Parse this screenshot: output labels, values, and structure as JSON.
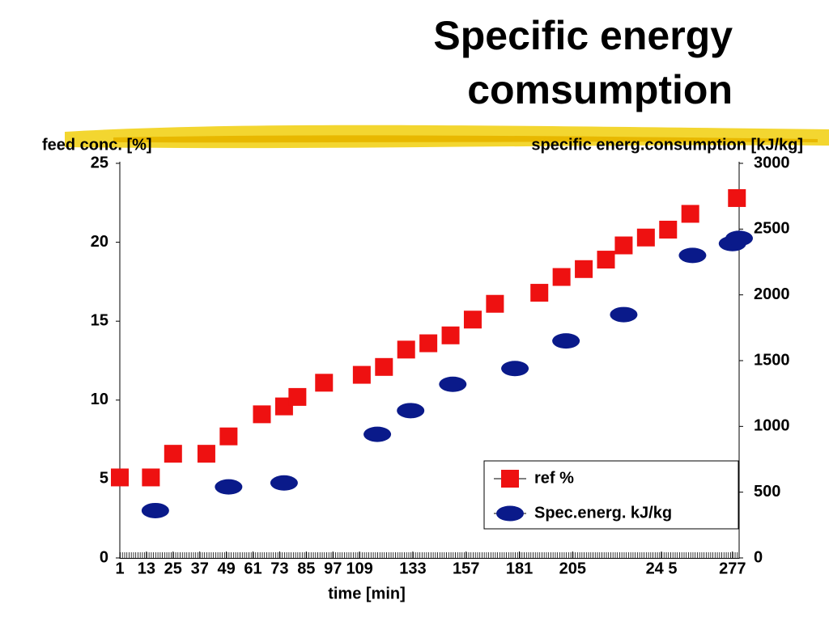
{
  "chart_data": {
    "type": "scatter",
    "title": [
      "Specific energy",
      "comsumption"
    ],
    "y_label": "feed conc. [%]",
    "y2_label": "specific energ.consumption [kJ/kg]",
    "x_label": "time [min]",
    "xlim": [
      1,
      280
    ],
    "xticks": [
      1,
      13,
      25,
      37,
      49,
      61,
      73,
      85,
      97,
      109,
      133,
      157,
      181,
      205,
      {
        "value": 245,
        "label": "24 5"
      },
      277
    ],
    "ylim": [
      0,
      25
    ],
    "yticks": [
      0,
      5,
      10,
      15,
      20,
      25
    ],
    "y2lim": [
      0,
      3000
    ],
    "y2ticks": [
      0,
      500,
      1000,
      1500,
      2000,
      2500,
      3000
    ],
    "legend": "bottom-right",
    "series": [
      {
        "name": "ref %",
        "color": "#ee1111",
        "marker": "square",
        "x": [
          1,
          15,
          25,
          40,
          50,
          65,
          75,
          81,
          93,
          110,
          120,
          130,
          140,
          150,
          160,
          170,
          190,
          200,
          210,
          220,
          228,
          238,
          248,
          258,
          279
        ],
        "values": [
          5.1,
          5.1,
          6.6,
          6.6,
          7.7,
          9.1,
          9.6,
          10.2,
          11.1,
          11.6,
          12.1,
          13.2,
          13.6,
          14.1,
          15.1,
          16.1,
          16.8,
          17.8,
          18.3,
          18.9,
          19.8,
          20.3,
          20.8,
          21.8,
          22.8
        ]
      },
      {
        "name": "Spec.energ. kJ/kg",
        "color": "#0a1a8a",
        "marker": "oval",
        "axis": "y2",
        "x": [
          17,
          50,
          75,
          117,
          132,
          151,
          179,
          202,
          228,
          259,
          277,
          280
        ],
        "values": [
          360,
          540,
          570,
          940,
          1120,
          1320,
          1440,
          1650,
          1850,
          2300,
          2390,
          2430
        ]
      }
    ]
  }
}
